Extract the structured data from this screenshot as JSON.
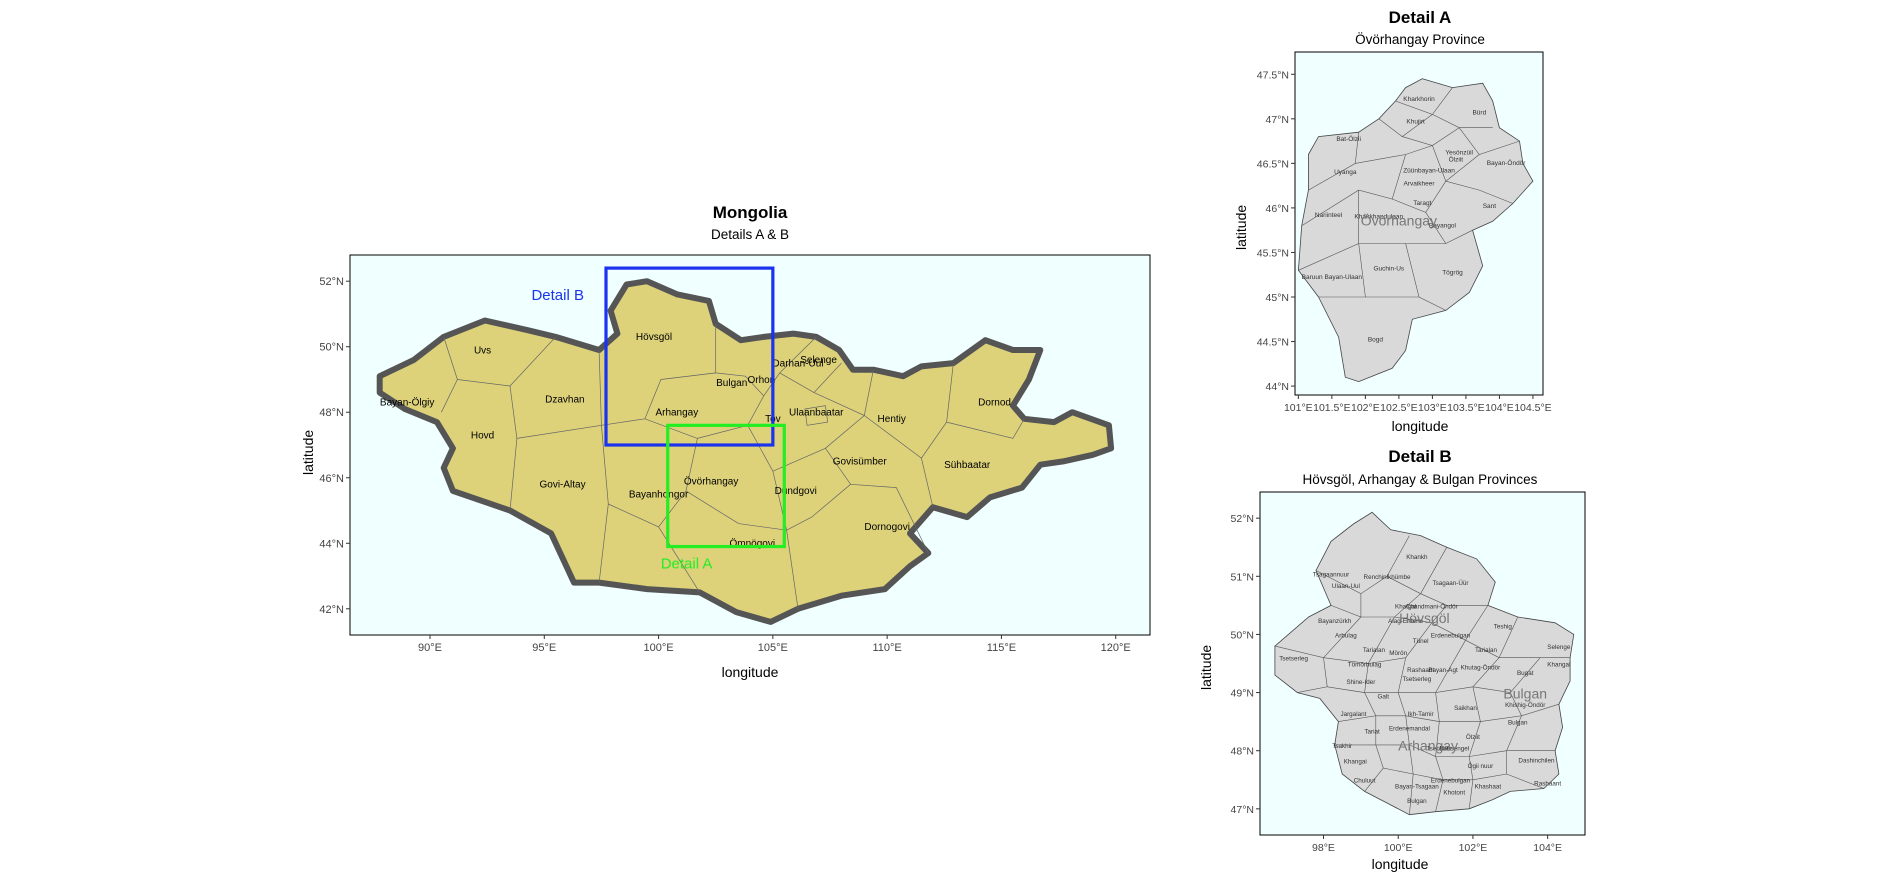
{
  "main_map": {
    "title": "Mongolia",
    "subtitle": "Details A & B",
    "xlabel": "longitude",
    "ylabel": "latitude",
    "x_ticks": [
      "90°E",
      "95°E",
      "100°E",
      "105°E",
      "110°E",
      "115°E",
      "120°E"
    ],
    "y_ticks": [
      "52°N",
      "50°N",
      "48°N",
      "46°N",
      "44°N",
      "42°N"
    ],
    "x_ticks_values": [
      90,
      95,
      100,
      105,
      110,
      115,
      120
    ],
    "y_ticks_values": [
      52,
      50,
      48,
      46,
      44,
      42
    ],
    "xlim": [
      86.5,
      121.5
    ],
    "ylim": [
      41.2,
      52.8
    ],
    "fill_color": "#ddd27a",
    "panel_color": "#f0ffff",
    "outline_color": "#555555",
    "provinces": [
      {
        "name": "Uvs",
        "lon": 92.3,
        "lat": 49.8
      },
      {
        "name": "Bayan-Ölgiy",
        "lon": 89.0,
        "lat": 48.2
      },
      {
        "name": "Hovd",
        "lon": 92.3,
        "lat": 47.2
      },
      {
        "name": "Dzavhan",
        "lon": 95.9,
        "lat": 48.3
      },
      {
        "name": "Govi-Altay",
        "lon": 95.8,
        "lat": 45.7
      },
      {
        "name": "Hövsgöl",
        "lon": 99.8,
        "lat": 50.2
      },
      {
        "name": "Bulgan",
        "lon": 103.2,
        "lat": 48.8
      },
      {
        "name": "Arhangay",
        "lon": 100.8,
        "lat": 47.9
      },
      {
        "name": "Orhon",
        "lon": 104.5,
        "lat": 48.9
      },
      {
        "name": "Darhan-Uul",
        "lon": 106.1,
        "lat": 49.4
      },
      {
        "name": "Selenge",
        "lon": 107.0,
        "lat": 49.5
      },
      {
        "name": "Tov",
        "lon": 105.0,
        "lat": 47.7
      },
      {
        "name": "Ulaanbaatar",
        "lon": 106.9,
        "lat": 47.9
      },
      {
        "name": "Hentiy",
        "lon": 110.2,
        "lat": 47.7
      },
      {
        "name": "Dornod",
        "lon": 114.7,
        "lat": 48.2
      },
      {
        "name": "Sühbaatar",
        "lon": 113.5,
        "lat": 46.3
      },
      {
        "name": "Govisümber",
        "lon": 108.8,
        "lat": 46.4
      },
      {
        "name": "Dundgovi",
        "lon": 106.0,
        "lat": 45.5
      },
      {
        "name": "Övörhangay",
        "lon": 102.3,
        "lat": 45.8
      },
      {
        "name": "Bayanhongor",
        "lon": 100.0,
        "lat": 45.4
      },
      {
        "name": "Dornogovi",
        "lon": 110.0,
        "lat": 44.4
      },
      {
        "name": "Ömnögovi",
        "lon": 104.1,
        "lat": 43.9
      }
    ],
    "detail_b": {
      "label": "Detail B",
      "color": "#1a33ee",
      "lon_min": 97.7,
      "lon_max": 105.0,
      "lat_min": 47.0,
      "lat_max": 52.4
    },
    "detail_a": {
      "label": "Detail A",
      "color": "#22ee22",
      "lon_min": 100.4,
      "lon_max": 105.5,
      "lat_min": 43.9,
      "lat_max": 47.6
    }
  },
  "detail_a_map": {
    "title": "Detail A",
    "subtitle": "Övörhangay Province",
    "xlabel": "longitude",
    "ylabel": "latitude",
    "x_ticks": [
      "101°E",
      "101.5°E",
      "102°E",
      "102.5°E",
      "103°E",
      "103.5°E",
      "104°E",
      "104.5°E"
    ],
    "y_ticks": [
      "47.5°N",
      "47°N",
      "46.5°N",
      "46°N",
      "45.5°N",
      "45°N",
      "44.5°N",
      "44°N"
    ],
    "x_ticks_values": [
      101,
      101.5,
      102,
      102.5,
      103,
      103.5,
      104,
      104.5
    ],
    "y_ticks_values": [
      47.5,
      47,
      46.5,
      46,
      45.5,
      45,
      44.5,
      44
    ],
    "xlim": [
      100.95,
      104.65
    ],
    "ylim": [
      43.9,
      47.75
    ],
    "province_label": "Övörhangay",
    "province_label_pos": {
      "lon": 102.5,
      "lat": 45.8
    },
    "districts": [
      {
        "name": "Kharkhorin",
        "lon": 102.8,
        "lat": 47.2
      },
      {
        "name": "Bürd",
        "lon": 103.7,
        "lat": 47.05
      },
      {
        "name": "Khujirt",
        "lon": 102.75,
        "lat": 46.95
      },
      {
        "name": "Bat-Ölzii",
        "lon": 101.75,
        "lat": 46.75
      },
      {
        "name": "Yesönzüil",
        "lon": 103.4,
        "lat": 46.6
      },
      {
        "name": "Ölziit",
        "lon": 103.35,
        "lat": 46.52
      },
      {
        "name": "Bayan-Öndör",
        "lon": 104.1,
        "lat": 46.48
      },
      {
        "name": "Uyanga",
        "lon": 101.7,
        "lat": 46.38
      },
      {
        "name": "Züünbayan-Ulaan",
        "lon": 102.95,
        "lat": 46.4
      },
      {
        "name": "Arvaikheer",
        "lon": 102.8,
        "lat": 46.25
      },
      {
        "name": "Taragt",
        "lon": 102.85,
        "lat": 46.03
      },
      {
        "name": "Sant",
        "lon": 103.85,
        "lat": 46.0
      },
      {
        "name": "Nariinteel",
        "lon": 101.45,
        "lat": 45.9
      },
      {
        "name": "Khairkhandulaan",
        "lon": 102.2,
        "lat": 45.88
      },
      {
        "name": "Bayangol",
        "lon": 103.15,
        "lat": 45.78
      },
      {
        "name": "Guchin-Us",
        "lon": 102.35,
        "lat": 45.3
      },
      {
        "name": "Tögrög",
        "lon": 103.3,
        "lat": 45.25
      },
      {
        "name": "Baruun Bayan-Ulaan",
        "lon": 101.5,
        "lat": 45.2
      },
      {
        "name": "Bogd",
        "lon": 102.15,
        "lat": 44.5
      }
    ]
  },
  "detail_b_map": {
    "title": "Detail B",
    "subtitle": "Hövsgöl, Arhangay & Bulgan Provinces",
    "xlabel": "longitude",
    "ylabel": "latitude",
    "x_ticks": [
      "98°E",
      "100°E",
      "102°E",
      "104°E"
    ],
    "y_ticks": [
      "52°N",
      "51°N",
      "50°N",
      "49°N",
      "48°N",
      "47°N"
    ],
    "x_ticks_values": [
      98,
      100,
      102,
      104
    ],
    "y_ticks_values": [
      52,
      51,
      50,
      49,
      48,
      47
    ],
    "xlim": [
      96.3,
      105.0
    ],
    "ylim": [
      46.55,
      52.45
    ],
    "province_labels": [
      {
        "name": "Hövsgöl",
        "lon": 100.7,
        "lat": 50.2
      },
      {
        "name": "Bulgan",
        "lon": 103.4,
        "lat": 48.9
      },
      {
        "name": "Arhangay",
        "lon": 100.8,
        "lat": 48.0
      }
    ],
    "districts": [
      {
        "name": "Tsagaannuur",
        "lon": 98.2,
        "lat": 51.0
      },
      {
        "name": "Khankh",
        "lon": 100.5,
        "lat": 51.3
      },
      {
        "name": "Renchinlkhümbe",
        "lon": 99.7,
        "lat": 50.95
      },
      {
        "name": "Tsagaan-Üür",
        "lon": 101.4,
        "lat": 50.85
      },
      {
        "name": "Ulaan-Uul",
        "lon": 98.6,
        "lat": 50.8
      },
      {
        "name": "Khatgal",
        "lon": 100.2,
        "lat": 50.45
      },
      {
        "name": "Chandmani-Öndör",
        "lon": 100.9,
        "lat": 50.45
      },
      {
        "name": "Bayanzürkh",
        "lon": 98.3,
        "lat": 50.2
      },
      {
        "name": "Alag-Erdene",
        "lon": 100.2,
        "lat": 50.2
      },
      {
        "name": "Arbulag",
        "lon": 98.6,
        "lat": 49.95
      },
      {
        "name": "Erdenebulgan",
        "lon": 101.4,
        "lat": 49.95
      },
      {
        "name": "Teshig",
        "lon": 102.8,
        "lat": 50.1
      },
      {
        "name": "Tarialan",
        "lon": 99.35,
        "lat": 49.7
      },
      {
        "name": "Mörön",
        "lon": 100.0,
        "lat": 49.65
      },
      {
        "name": "Tömörbulag",
        "lon": 99.1,
        "lat": 49.45
      },
      {
        "name": "Tünel",
        "lon": 100.6,
        "lat": 49.85
      },
      {
        "name": "Tsetserleg",
        "lon": 97.2,
        "lat": 49.55
      },
      {
        "name": "Rashaant",
        "lon": 100.6,
        "lat": 49.35
      },
      {
        "name": "Khutag-Öndör",
        "lon": 102.2,
        "lat": 49.4
      },
      {
        "name": "Selenge",
        "lon": 104.3,
        "lat": 49.75
      },
      {
        "name": "Khangal",
        "lon": 104.3,
        "lat": 49.45
      },
      {
        "name": "Tarialan",
        "lon": 102.35,
        "lat": 49.7
      },
      {
        "name": "Bugat",
        "lon": 103.4,
        "lat": 49.3
      },
      {
        "name": "Shine-Ider",
        "lon": 99.0,
        "lat": 49.15
      },
      {
        "name": "Tsetserleg",
        "lon": 100.5,
        "lat": 49.2
      },
      {
        "name": "Bayan-Agt",
        "lon": 101.2,
        "lat": 49.35
      },
      {
        "name": "Galt",
        "lon": 99.6,
        "lat": 48.9
      },
      {
        "name": "Jargalant",
        "lon": 98.8,
        "lat": 48.6
      },
      {
        "name": "Ikh-Tamir",
        "lon": 100.6,
        "lat": 48.6
      },
      {
        "name": "Saikhan",
        "lon": 101.8,
        "lat": 48.7
      },
      {
        "name": "Khishig-Öndör",
        "lon": 103.4,
        "lat": 48.75
      },
      {
        "name": "Erdenemandal",
        "lon": 100.3,
        "lat": 48.35
      },
      {
        "name": "Bulgan",
        "lon": 103.2,
        "lat": 48.45
      },
      {
        "name": "Tsakhir",
        "lon": 98.5,
        "lat": 48.05
      },
      {
        "name": "Khangai",
        "lon": 98.85,
        "lat": 47.78
      },
      {
        "name": "Tariat",
        "lon": 99.3,
        "lat": 48.3
      },
      {
        "name": "Tsenkher",
        "lon": 101.1,
        "lat": 48.0
      },
      {
        "name": "Battsengel",
        "lon": 101.5,
        "lat": 48.0
      },
      {
        "name": "Ölziit",
        "lon": 102.0,
        "lat": 48.2
      },
      {
        "name": "Dashinchilen",
        "lon": 103.7,
        "lat": 47.8
      },
      {
        "name": "Chuluut",
        "lon": 99.1,
        "lat": 47.45
      },
      {
        "name": "Ögii nuur",
        "lon": 102.2,
        "lat": 47.7
      },
      {
        "name": "Bayan-Tsagaan",
        "lon": 100.5,
        "lat": 47.35
      },
      {
        "name": "Khashaat",
        "lon": 102.4,
        "lat": 47.35
      },
      {
        "name": "Erdenebulgan",
        "lon": 101.4,
        "lat": 47.45
      },
      {
        "name": "Khotont",
        "lon": 101.5,
        "lat": 47.25
      },
      {
        "name": "Bulgan",
        "lon": 100.5,
        "lat": 47.1
      },
      {
        "name": "Rashaant",
        "lon": 104.0,
        "lat": 47.4
      }
    ]
  }
}
